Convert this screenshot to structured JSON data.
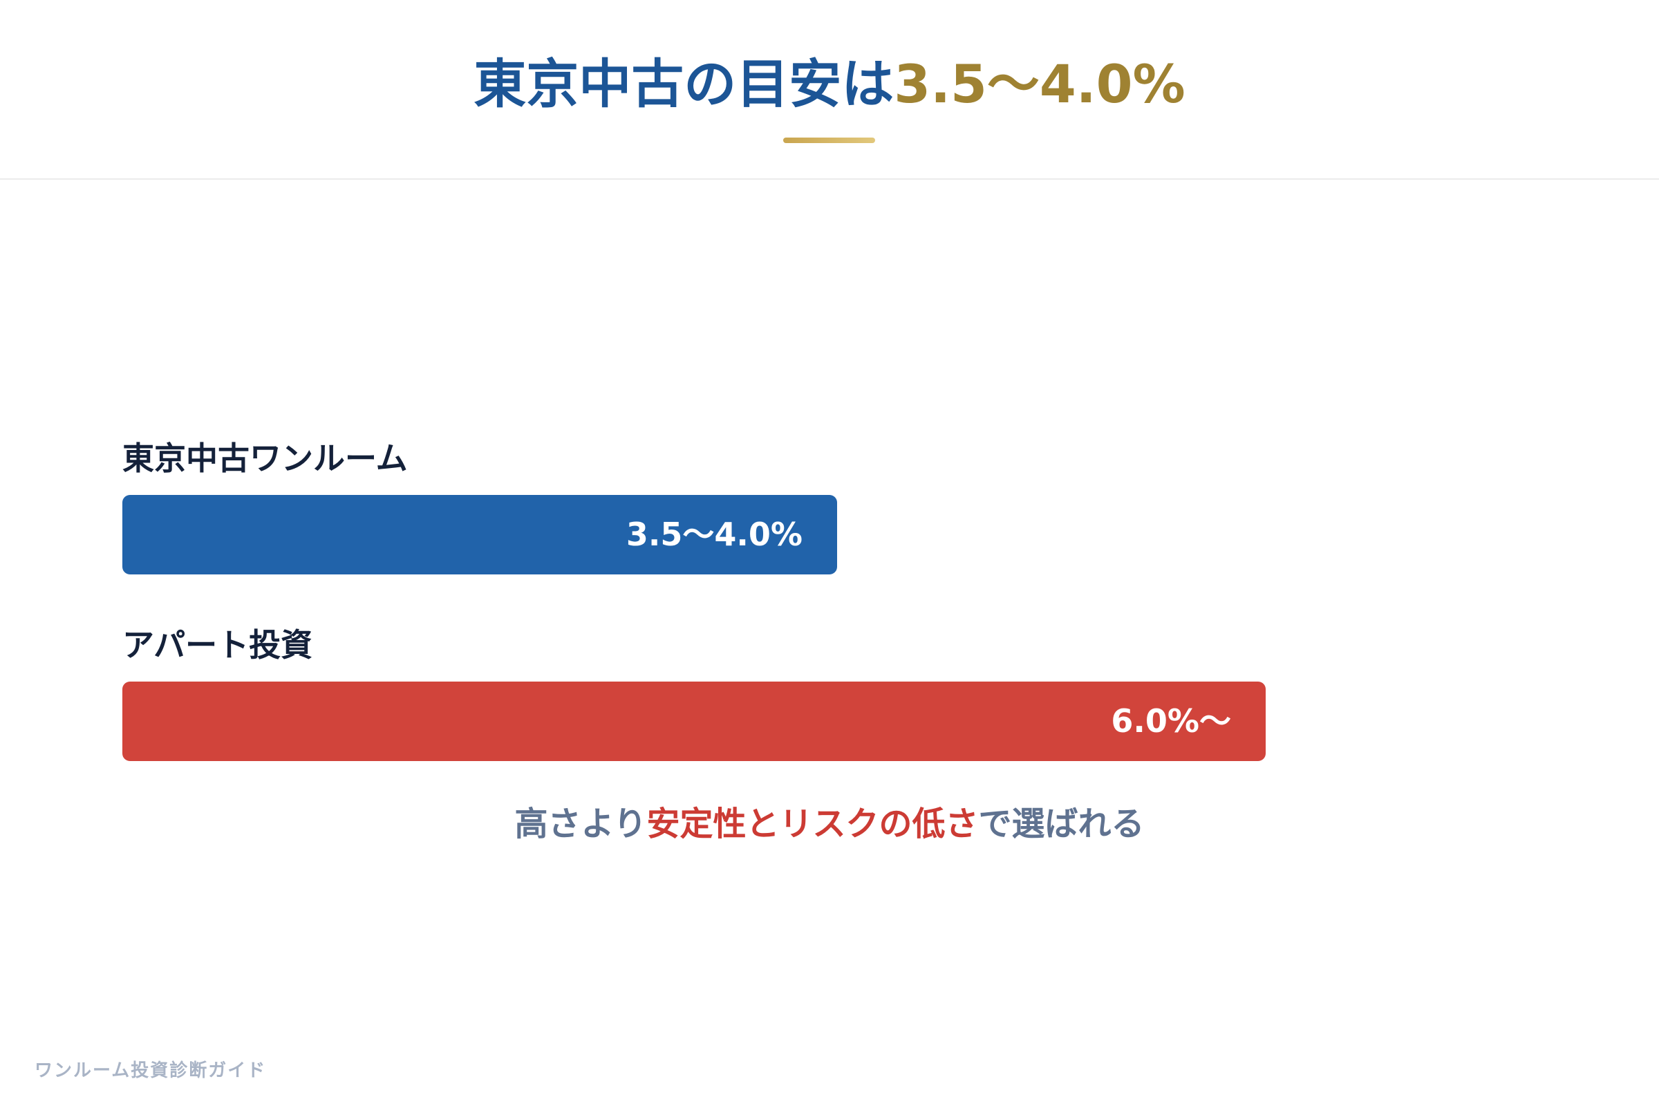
{
  "header": {
    "title_main": "東京中古の目安は",
    "title_accent": "3.5〜4.0%",
    "accent_color": "#9f8232"
  },
  "chart_data": {
    "type": "bar",
    "orientation": "horizontal",
    "categories": [
      "東京中古ワンルーム",
      "アパート投資"
    ],
    "values": [
      3.75,
      6.0
    ],
    "value_labels": [
      "3.5〜4.0%",
      "6.0%〜"
    ],
    "colors": [
      "#2163aa",
      "#d1443b"
    ],
    "xlim": [
      0,
      7.5
    ],
    "grid": false,
    "legend": "none"
  },
  "caption": {
    "prefix": "高さより",
    "highlight": "安定性とリスクの低さ",
    "suffix": "で選ばれる"
  },
  "footer": {
    "brand": "ワンルーム投資診断ガイド"
  }
}
